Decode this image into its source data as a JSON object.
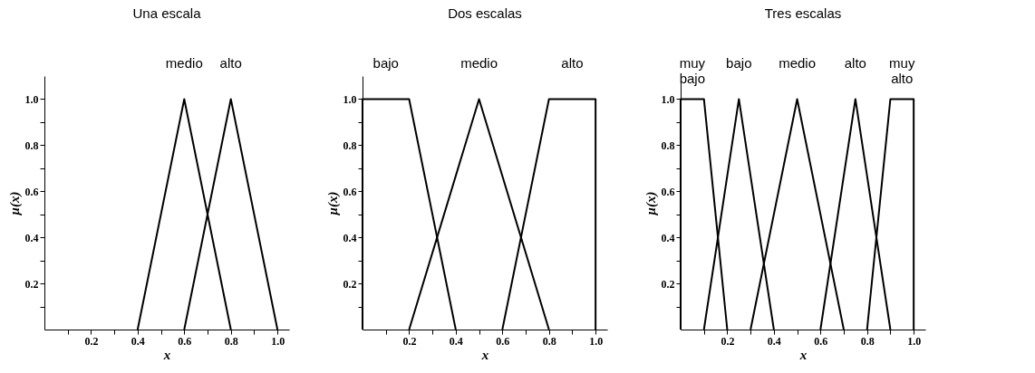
{
  "chart_data": [
    {
      "type": "line",
      "title": "Una escala",
      "xlabel": "x",
      "ylabel": "μ(x)",
      "xlim": [
        0,
        1.05
      ],
      "ylim": [
        0,
        1.1
      ],
      "line_style": "solid",
      "xticks": [
        {
          "value": 0.1,
          "label": null
        },
        0.2,
        {
          "value": 0.3,
          "label": null
        },
        0.4,
        {
          "value": 0.5,
          "label": null
        },
        0.6,
        {
          "value": 0.7,
          "label": null
        },
        0.8,
        {
          "value": 0.9,
          "label": null
        },
        {
          "value": 1,
          "label": "1.0"
        }
      ],
      "yticks": [
        {
          "value": 0.1,
          "label": null
        },
        0.2,
        {
          "value": 0.3,
          "label": null
        },
        0.4,
        {
          "value": 0.5,
          "label": null
        },
        0.6,
        {
          "value": 0.7,
          "label": null
        },
        0.8,
        {
          "value": 0.9,
          "label": null
        },
        {
          "value": 1,
          "label": "1.0"
        }
      ],
      "series": [
        {
          "name": "medio",
          "color": "#000000",
          "x": [
            0.4,
            0.6,
            0.8
          ],
          "values": [
            0,
            1,
            0
          ]
        },
        {
          "name": "alto",
          "color": "#000000",
          "x": [
            0.6,
            0.8,
            1.0
          ],
          "values": [
            0,
            1,
            0
          ]
        }
      ]
    },
    {
      "type": "line",
      "title": "Dos escalas",
      "xlabel": "x",
      "ylabel": "μ(x)",
      "xlim": [
        0,
        1.05
      ],
      "ylim": [
        0,
        1.1
      ],
      "line_style": "solid",
      "xticks": [
        {
          "value": 0.1,
          "label": null
        },
        0.2,
        {
          "value": 0.3,
          "label": null
        },
        0.4,
        {
          "value": 0.5,
          "label": null
        },
        0.6,
        {
          "value": 0.7,
          "label": null
        },
        0.8,
        {
          "value": 0.9,
          "label": null
        },
        {
          "value": 1,
          "label": "1.0"
        }
      ],
      "yticks": [
        {
          "value": 0.1,
          "label": null
        },
        0.2,
        {
          "value": 0.3,
          "label": null
        },
        0.4,
        {
          "value": 0.5,
          "label": null
        },
        0.6,
        {
          "value": 0.7,
          "label": null
        },
        0.8,
        {
          "value": 0.9,
          "label": null
        },
        {
          "value": 1,
          "label": "1.0"
        }
      ],
      "series": [
        {
          "name": "bajo",
          "color": "#000000",
          "x": [
            0,
            0,
            0.2,
            0.4
          ],
          "values": [
            0,
            1,
            1,
            0
          ]
        },
        {
          "name": "medio",
          "color": "#000000",
          "x": [
            0.2,
            0.5,
            0.8
          ],
          "values": [
            0,
            1,
            0
          ]
        },
        {
          "name": "alto",
          "color": "#000000",
          "x": [
            0.6,
            0.8,
            1.0,
            1.0
          ],
          "values": [
            0,
            1,
            1,
            0
          ]
        }
      ]
    },
    {
      "type": "line",
      "title": "Tres escalas",
      "xlabel": "x",
      "ylabel": "μ(x)",
      "xlim": [
        0,
        1.05
      ],
      "ylim": [
        0,
        1.1
      ],
      "line_style": "solid",
      "xticks": [
        {
          "value": 0.1,
          "label": null
        },
        0.2,
        {
          "value": 0.3,
          "label": null
        },
        0.4,
        {
          "value": 0.5,
          "label": null
        },
        0.6,
        {
          "value": 0.7,
          "label": null
        },
        0.8,
        {
          "value": 0.9,
          "label": null
        },
        {
          "value": 1,
          "label": "1.0"
        }
      ],
      "yticks": [
        {
          "value": 0.1,
          "label": null
        },
        0.2,
        {
          "value": 0.3,
          "label": null
        },
        0.4,
        {
          "value": 0.5,
          "label": null
        },
        0.6,
        {
          "value": 0.7,
          "label": null
        },
        0.8,
        {
          "value": 0.9,
          "label": null
        },
        {
          "value": 1,
          "label": "1.0"
        }
      ],
      "series": [
        {
          "name": "muy bajo",
          "color": "#000000",
          "x": [
            0,
            0,
            0.1,
            0.2
          ],
          "values": [
            0,
            1,
            1,
            0
          ]
        },
        {
          "name": "bajo",
          "color": "#000000",
          "x": [
            0.1,
            0.25,
            0.4
          ],
          "values": [
            0,
            1,
            0
          ]
        },
        {
          "name": "medio",
          "color": "#000000",
          "x": [
            0.3,
            0.5,
            0.7
          ],
          "values": [
            0,
            1,
            0
          ]
        },
        {
          "name": "alto",
          "color": "#000000",
          "x": [
            0.6,
            0.75,
            0.9
          ],
          "values": [
            0,
            1,
            0
          ]
        },
        {
          "name": "muy alto",
          "color": "#000000",
          "x": [
            0.8,
            0.9,
            1.0,
            1.0
          ],
          "values": [
            0,
            1,
            1,
            0
          ]
        }
      ]
    }
  ]
}
